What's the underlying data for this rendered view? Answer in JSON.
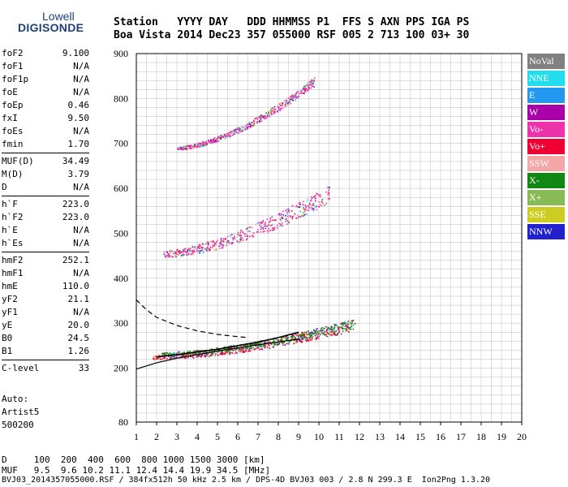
{
  "logo": {
    "line1": "Lowell",
    "line2": "DIGISONDE"
  },
  "header": {
    "line1": "Station   YYYY DAY   DDD HHMMSS P1  FFS S AXN PPS IGA PS",
    "line2": "Boa Vista 2014 Dec23 357 055000 RSF 005 2 713 100 03+ 30"
  },
  "params": [
    {
      "k": "foF2",
      "v": "9.100"
    },
    {
      "k": "foF1",
      "v": "N/A"
    },
    {
      "k": "foF1p",
      "v": "N/A"
    },
    {
      "k": "foE",
      "v": "N/A"
    },
    {
      "k": "foEp",
      "v": "0.46"
    },
    {
      "k": "fxI",
      "v": "9.50"
    },
    {
      "k": "foEs",
      "v": "N/A"
    },
    {
      "k": "fmin",
      "v": "1.70"
    },
    {
      "k": "MUF(D)",
      "v": "34.49"
    },
    {
      "k": "M(D)",
      "v": "3.79"
    },
    {
      "k": "D",
      "v": "N/A"
    },
    {
      "k": "h`F",
      "v": "223.0"
    },
    {
      "k": "h`F2",
      "v": "223.0"
    },
    {
      "k": "h`E",
      "v": "N/A"
    },
    {
      "k": "h`Es",
      "v": "N/A"
    },
    {
      "k": "hmF2",
      "v": "252.1"
    },
    {
      "k": "hmF1",
      "v": "N/A"
    },
    {
      "k": "hmE",
      "v": "110.0"
    },
    {
      "k": "yF2",
      "v": "21.1"
    },
    {
      "k": "yF1",
      "v": "N/A"
    },
    {
      "k": "yE",
      "v": "20.0"
    },
    {
      "k": "B0",
      "v": "24.5"
    },
    {
      "k": "B1",
      "v": "1.26"
    },
    {
      "k": "C-level",
      "v": "33"
    }
  ],
  "auto": {
    "line1": "Auto:",
    "line2": "Artist5",
    "line3": "500200"
  },
  "footer": {
    "line1": "D     100  200  400  600  800 1000 1500 3000 [km]",
    "line2": "MUF   9.5  9.6 10.2 11.1 12.4 14.4 19.9 34.5 [MHz]",
    "line3": "BVJ03_2014357055000.RSF / 384fx512h 50 kHz 2.5 km / DPS-4D BVJ03 003 / 2.8 N 299.3 E  Ion2Png 1.3.20"
  },
  "legend": [
    {
      "label": "NoVal",
      "color": "#808080"
    },
    {
      "label": "NNE",
      "color": "#22ddee"
    },
    {
      "label": "E",
      "color": "#2299ee"
    },
    {
      "label": "W",
      "color": "#aa00aa"
    },
    {
      "label": "Vo-",
      "color": "#ee33aa"
    },
    {
      "label": "Vo+",
      "color": "#ee0033"
    },
    {
      "label": "SSW",
      "color": "#f4a7a7"
    },
    {
      "label": "X-",
      "color": "#118811"
    },
    {
      "label": "X+",
      "color": "#88bb55"
    },
    {
      "label": "SSE",
      "color": "#cccc22"
    },
    {
      "label": "NNW",
      "color": "#2222cc"
    }
  ],
  "chart_data": {
    "type": "scatter",
    "title": "",
    "xlabel": "",
    "ylabel": "",
    "xlim": [
      1,
      20
    ],
    "ylim": [
      80,
      900
    ],
    "xticks": [
      1,
      2,
      3,
      4,
      5,
      6,
      7,
      8,
      9,
      10,
      11,
      12,
      13,
      14,
      15,
      16,
      17,
      18,
      19,
      20
    ],
    "yticks": [
      200,
      300,
      400,
      500,
      600,
      700,
      800,
      900
    ],
    "ytick_labels_bottom": "80",
    "grid": true,
    "traces": [
      {
        "name": "1st hop O-trace",
        "color": "#ee0033",
        "x0": 1.8,
        "x1": 11.5,
        "h0": 225,
        "h1": 295,
        "spread": 18
      },
      {
        "name": "1st hop X-trace",
        "color": "#118811",
        "x0": 2.2,
        "x1": 11.8,
        "h0": 232,
        "h1": 300,
        "spread": 14
      },
      {
        "name": "2nd hop",
        "color": "#ee33aa",
        "x0": 2.3,
        "x1": 10.5,
        "h0": 455,
        "h1": 590,
        "spread": 28
      },
      {
        "name": "3rd hop",
        "color": "#ee33aa",
        "x0": 3.0,
        "x1": 9.8,
        "h0": 690,
        "h1": 840,
        "spread": 14
      }
    ],
    "profile_solid": [
      [
        1.0,
        198
      ],
      [
        2,
        212
      ],
      [
        3,
        222
      ],
      [
        4,
        230
      ],
      [
        5,
        238
      ],
      [
        6,
        245
      ],
      [
        7,
        252
      ],
      [
        8,
        258
      ],
      [
        9,
        265
      ],
      [
        9.1,
        258
      ]
    ],
    "profile_dashed": [
      [
        1.0,
        352
      ],
      [
        1.5,
        330
      ],
      [
        2,
        313
      ],
      [
        3,
        295
      ],
      [
        4,
        283
      ],
      [
        5,
        275
      ],
      [
        6,
        270
      ],
      [
        6.5,
        268
      ]
    ],
    "trace_line": [
      [
        2,
        225
      ],
      [
        3,
        230
      ],
      [
        4,
        236
      ],
      [
        5,
        242
      ],
      [
        6,
        250
      ],
      [
        7,
        258
      ],
      [
        8,
        268
      ],
      [
        9,
        280
      ]
    ]
  }
}
